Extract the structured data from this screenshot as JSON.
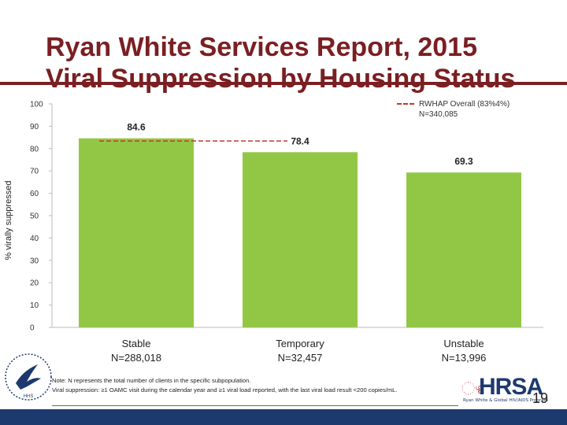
{
  "title_line1": "Ryan White Services Report, 2015",
  "title_line2": "Viral Suppression by Housing Status",
  "legend": {
    "label": "RWHAP Overall (83%4%)",
    "n": "N=340,085"
  },
  "note": {
    "line1": "Note: N represents the total number of clients in the specific subpopulation.",
    "line2": "Viral suppression: ≥1 OAMC visit during the calendar year and ≥1 viral load reported, with the last viral load result <200 copies/mL."
  },
  "logo": {
    "hrsa": "HRSA",
    "hrsa_sub": "Ryan White & Global HIV/AIDS Program",
    "hhs": "HHS"
  },
  "page_number": "19",
  "colors": {
    "bar": "#92c746",
    "reference": "#c0392b",
    "title": "#7a1f22",
    "footer": "#1d3a6e"
  },
  "chart_data": {
    "type": "bar",
    "categories": [
      "Stable",
      "Temporary",
      "Unstable"
    ],
    "category_n": [
      "N=288,018",
      "N=32,457",
      "N=13,996"
    ],
    "values": [
      84.6,
      78.4,
      69.3
    ],
    "value_labels": [
      "84.6",
      "78.4",
      "69.3"
    ],
    "ylabel": "% virally suppressed",
    "xlabel": "",
    "ylim": [
      0,
      100
    ],
    "yticks": [
      0,
      10,
      20,
      30,
      40,
      50,
      60,
      70,
      80,
      90,
      100
    ],
    "reference_line": {
      "value": 83.4,
      "label": "RWHAP Overall"
    },
    "grid": false
  }
}
